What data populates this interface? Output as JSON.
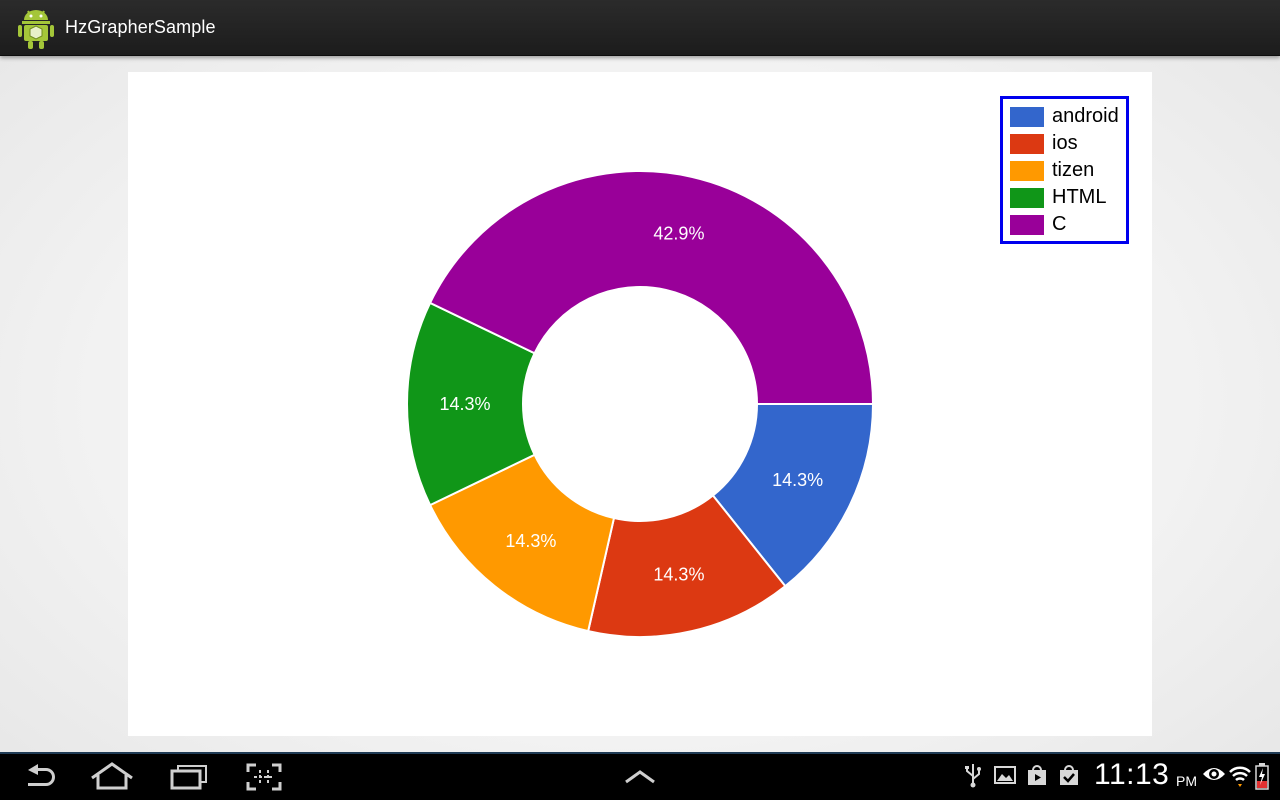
{
  "app": {
    "title": "HzGrapherSample",
    "icon": "android-robot-icon"
  },
  "chart_data": {
    "type": "pie",
    "donut": true,
    "categories": [
      "android",
      "ios",
      "tizen",
      "HTML",
      "C"
    ],
    "values": [
      1,
      1,
      1,
      1,
      3
    ],
    "percent_labels": [
      "14.3%",
      "14.3%",
      "14.3%",
      "14.3%",
      "42.9%"
    ],
    "colors": [
      "#3366cc",
      "#dc3912",
      "#ff9900",
      "#109618",
      "#990099"
    ],
    "legend": [
      "android",
      "ios",
      "tizen",
      "HTML",
      "C"
    ],
    "legend_position": "top-right",
    "legend_border_color": "#0000ee",
    "title": "",
    "xlabel": "",
    "ylabel": ""
  },
  "system_bar": {
    "time": "11:13",
    "ampm": "PM",
    "nav_icons": [
      "back-icon",
      "home-icon",
      "recent-apps-icon",
      "screenshot-icon",
      "chevron-up-icon"
    ],
    "status_icons": [
      "usb-icon",
      "gallery-icon",
      "play-store-icon",
      "download-done-icon",
      "eye-icon",
      "wifi-icon",
      "battery-charging-icon"
    ]
  }
}
